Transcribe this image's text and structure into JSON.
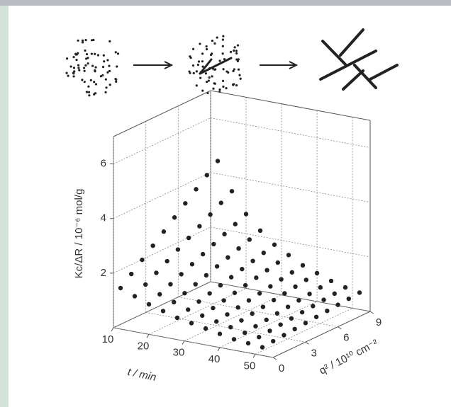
{
  "chart_data": {
    "type": "scatter3d",
    "z_label": "Kc/ΔR / 10⁻⁶ mol/g",
    "t_label": "t / min",
    "q_label": "q² / 10¹⁰ cm⁻²",
    "tlim": [
      10,
      55
    ],
    "tticks": [
      10,
      20,
      30,
      40,
      50
    ],
    "qlim": [
      0,
      9
    ],
    "qticks": [
      0,
      3,
      6,
      9
    ],
    "zlim": [
      0,
      7
    ],
    "zticks": [
      2,
      4,
      6
    ],
    "grid": true,
    "color": "#222222",
    "x": [
      0,
      1,
      2,
      3,
      4,
      5,
      6,
      7,
      8,
      9
    ],
    "series": [
      {
        "t": 12,
        "values": [
          1.5,
          1.83,
          2.16,
          2.49,
          2.82,
          3.15,
          3.48,
          3.81,
          4.14,
          4.47
        ]
      },
      {
        "t": 16,
        "values": [
          1.3,
          1.54,
          1.78,
          2.02,
          2.26,
          2.5,
          2.74,
          2.98,
          3.22,
          3.46
        ]
      },
      {
        "t": 20,
        "values": [
          1.1,
          1.28,
          1.46,
          1.64,
          1.82,
          2.0,
          2.18,
          2.36,
          2.54,
          2.72
        ]
      },
      {
        "t": 24,
        "values": [
          0.95,
          1.09,
          1.23,
          1.37,
          1.51,
          1.65,
          1.79,
          1.93,
          2.07,
          2.21
        ]
      },
      {
        "t": 28,
        "values": [
          0.8,
          0.91,
          1.02,
          1.13,
          1.24,
          1.35,
          1.46,
          1.57,
          1.68,
          1.79
        ]
      },
      {
        "t": 32,
        "values": [
          0.7,
          0.79,
          0.88,
          0.97,
          1.06,
          1.15,
          1.24,
          1.33,
          1.42,
          1.51
        ]
      },
      {
        "t": 36,
        "values": [
          0.6,
          0.67,
          0.74,
          0.81,
          0.88,
          0.95,
          1.02,
          1.09,
          1.16,
          1.23
        ]
      },
      {
        "t": 40,
        "values": [
          0.5,
          0.56,
          0.62,
          0.68,
          0.74,
          0.8,
          0.86,
          0.92,
          0.98,
          1.04
        ]
      },
      {
        "t": 44,
        "values": [
          0.4,
          0.45,
          0.5,
          0.55,
          0.6,
          0.65,
          0.7,
          0.75,
          0.8,
          0.85
        ]
      },
      {
        "t": 48,
        "values": [
          0.35,
          0.39,
          0.43,
          0.47,
          0.51,
          0.55,
          0.59,
          0.63,
          0.67,
          0.71
        ]
      },
      {
        "t": 52,
        "values": [
          0.3,
          0.335,
          0.37,
          0.405,
          0.44,
          0.475,
          0.51,
          0.545,
          0.58,
          0.615
        ]
      }
    ]
  }
}
